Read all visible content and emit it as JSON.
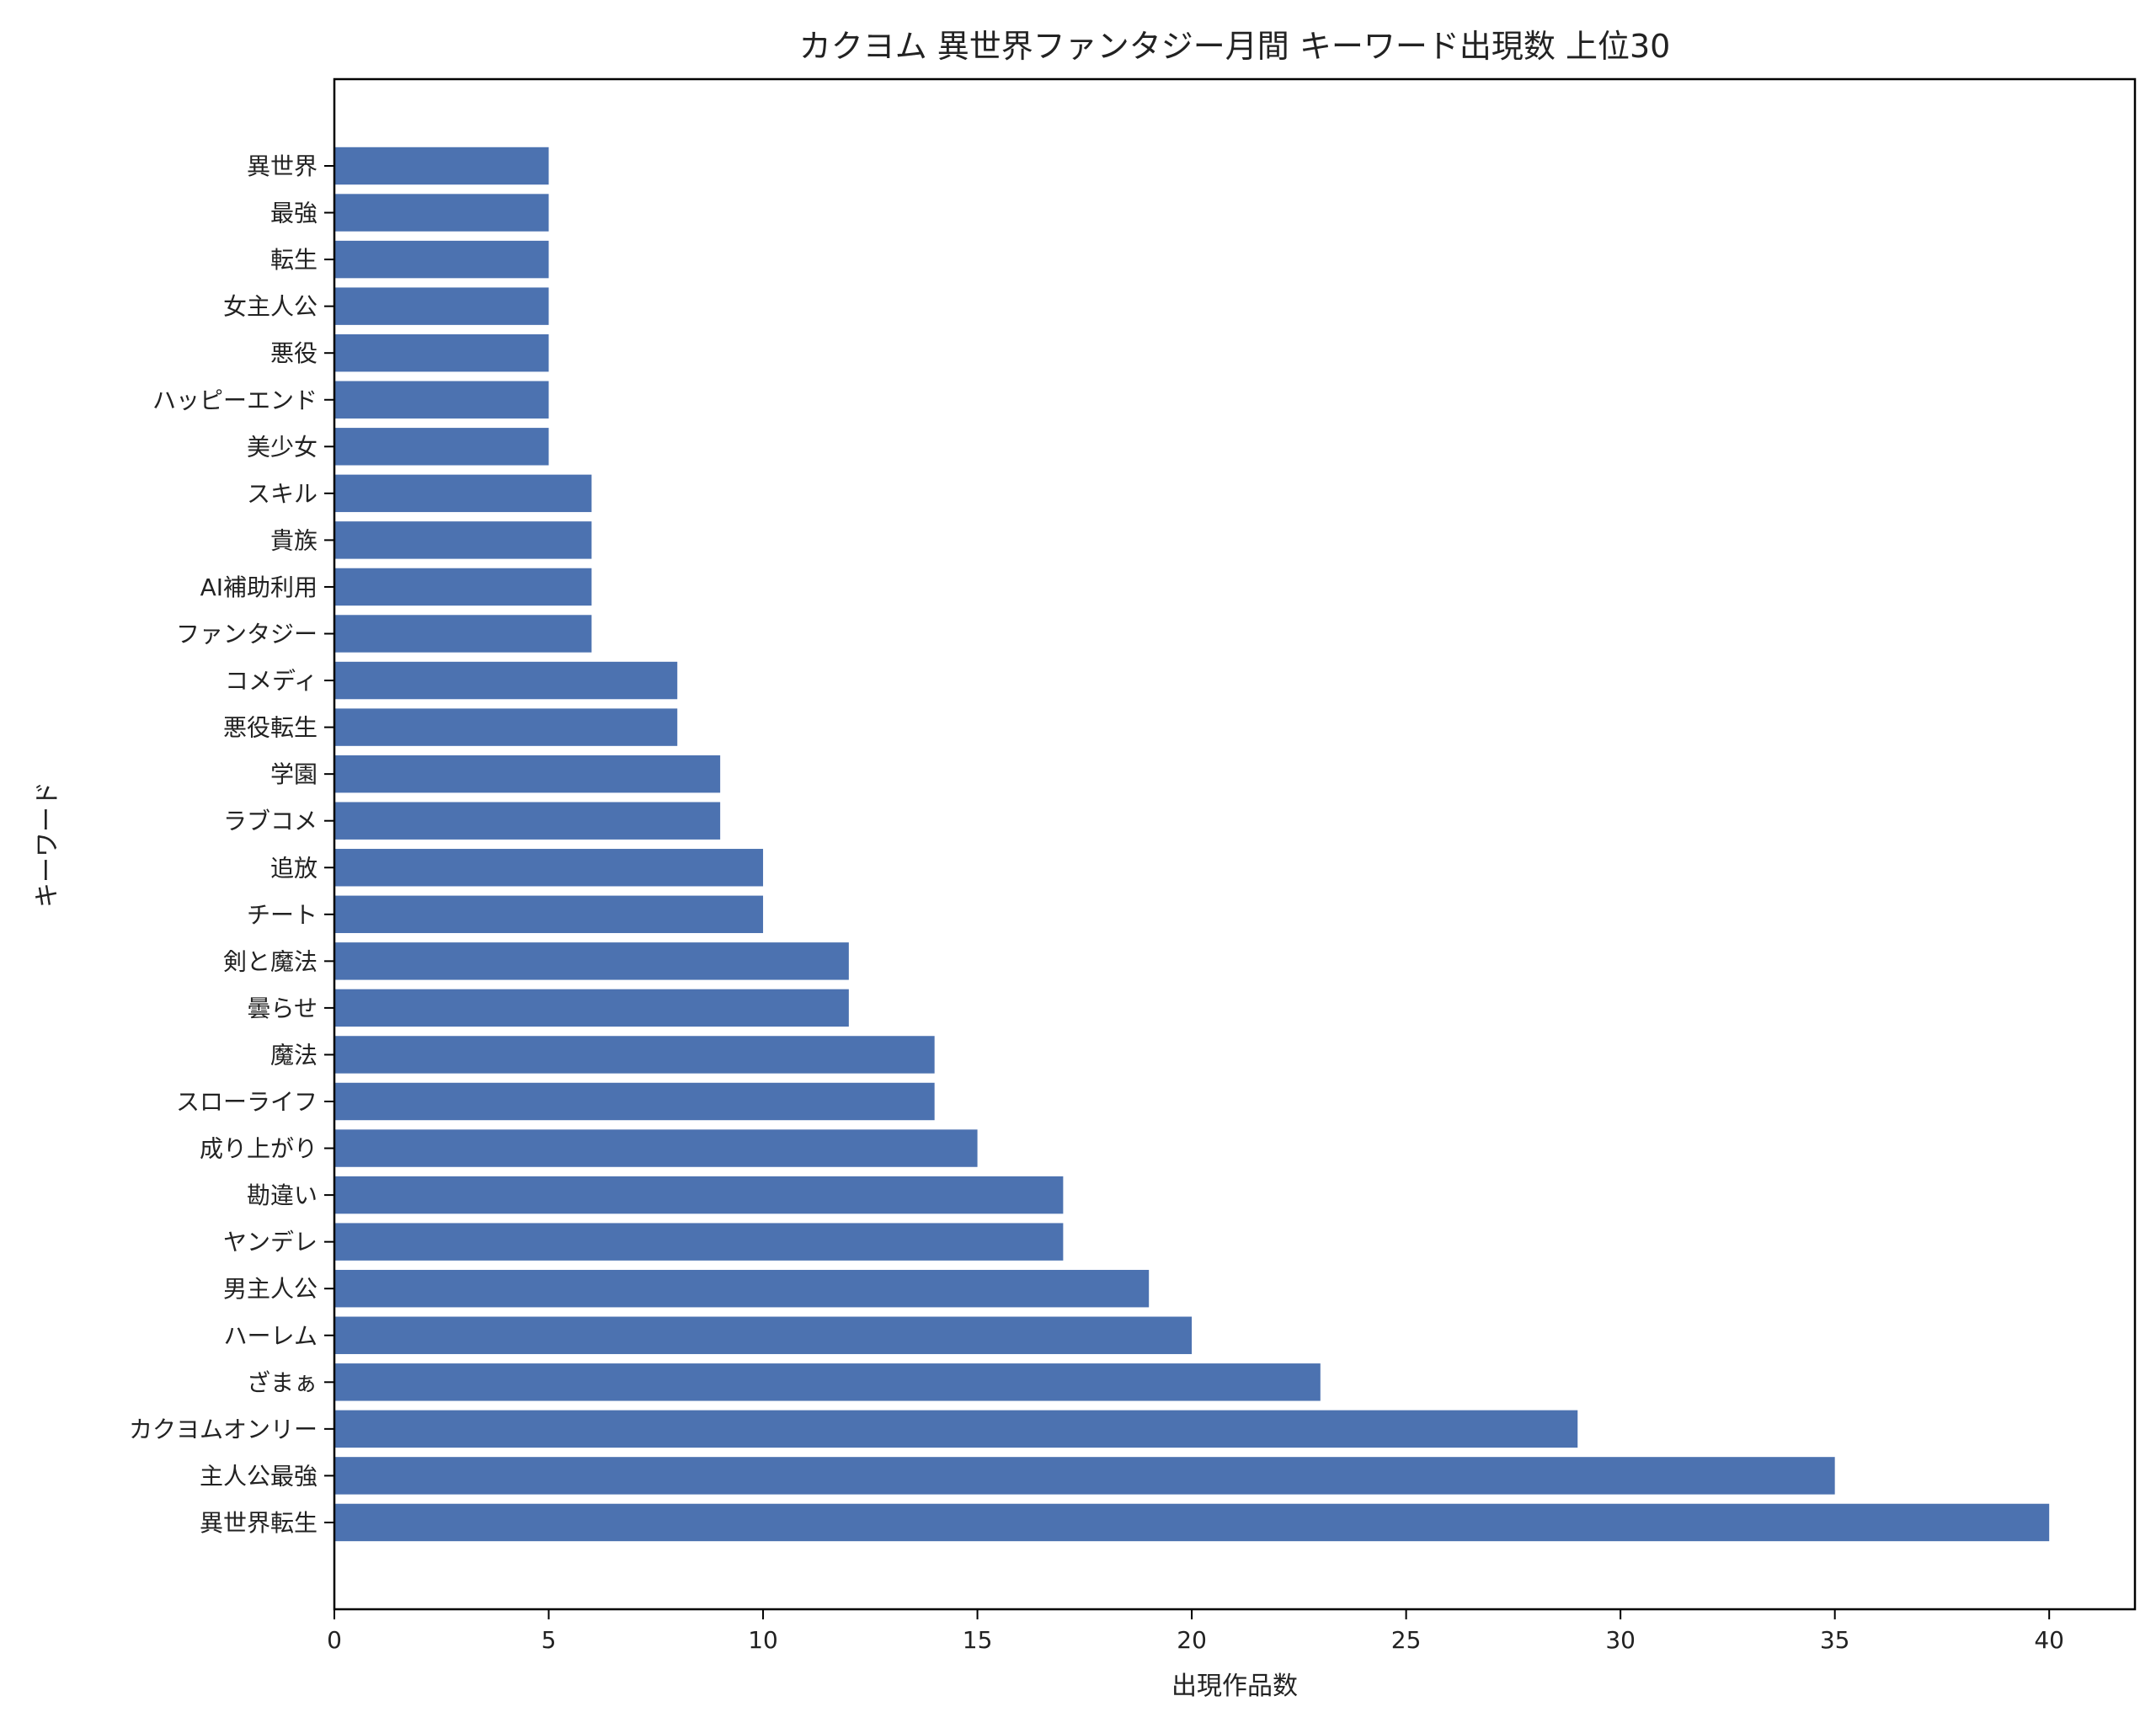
{
  "chart_data": {
    "type": "bar",
    "orientation": "horizontal",
    "title": "カクヨム 異世界ファンタジー月間 キーワード出現数 上位30",
    "xlabel": "出現作品数",
    "ylabel": "キーワード",
    "xlim": [
      0,
      42
    ],
    "xticks": [
      0,
      5,
      10,
      15,
      20,
      25,
      30,
      35,
      40
    ],
    "grid": false,
    "bar_color": "#4c72b0",
    "categories": [
      "異世界",
      "最強",
      "転生",
      "女主人公",
      "悪役",
      "ハッピーエンド",
      "美少女",
      "スキル",
      "貴族",
      "AI補助利用",
      "ファンタジー",
      "コメディ",
      "悪役転生",
      "学園",
      "ラブコメ",
      "追放",
      "チート",
      "剣と魔法",
      "曇らせ",
      "魔法",
      "スローライフ",
      "成り上がり",
      "勘違い",
      "ヤンデレ",
      "男主人公",
      "ハーレム",
      "ざまぁ",
      "カクヨムオンリー",
      "主人公最強",
      "異世界転生"
    ],
    "values": [
      5,
      5,
      5,
      5,
      5,
      5,
      5,
      6,
      6,
      6,
      6,
      8,
      8,
      9,
      9,
      10,
      10,
      12,
      12,
      14,
      14,
      15,
      17,
      17,
      19,
      20,
      23,
      29,
      35,
      40
    ]
  }
}
